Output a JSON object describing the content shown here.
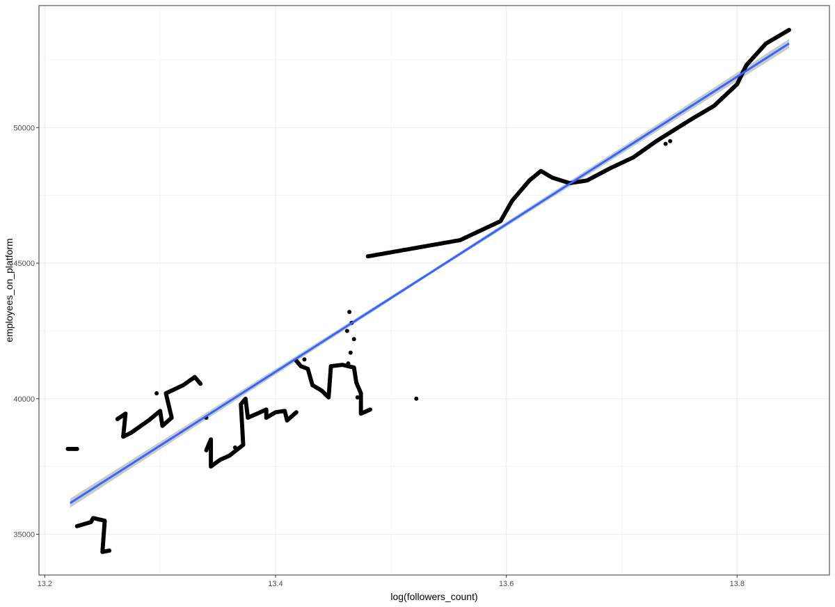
{
  "chart_data": {
    "type": "scatter",
    "title": "",
    "xlabel": "log(followers_count)",
    "ylabel": "employees_on_platform",
    "xlim": [
      13.195,
      13.88
    ],
    "ylim": [
      33500,
      54500
    ],
    "x_ticks": [
      13.2,
      13.4,
      13.6,
      13.8
    ],
    "x_tick_labels": [
      "13.2",
      "13.4",
      "13.6",
      "13.8"
    ],
    "y_ticks": [
      35000,
      40000,
      45000,
      50000
    ],
    "y_tick_labels": [
      "35000",
      "40000",
      "45000",
      "50000"
    ],
    "grid": true,
    "legend": "none",
    "point_color": "#000000",
    "fit_line": {
      "method": "linear",
      "color": "#3366FF",
      "band_color": "#BFBFBF",
      "start": [
        13.222,
        36150
      ],
      "end": [
        13.845,
        53100
      ]
    },
    "point_path": [
      [
        13.22,
        38150
      ],
      [
        13.228,
        38150
      ],
      [
        13.228,
        35300
      ],
      [
        13.24,
        35450
      ],
      [
        13.242,
        35600
      ],
      [
        13.252,
        35500
      ],
      [
        13.25,
        34350
      ],
      [
        13.256,
        34400
      ],
      [
        13.263,
        39250
      ],
      [
        13.27,
        39450
      ],
      [
        13.268,
        38600
      ],
      [
        13.275,
        38750
      ],
      [
        13.28,
        38900
      ],
      [
        13.29,
        39200
      ],
      [
        13.3,
        39550
      ],
      [
        13.302,
        39000
      ],
      [
        13.31,
        39300
      ],
      [
        13.305,
        40200
      ],
      [
        13.32,
        40500
      ],
      [
        13.33,
        40800
      ],
      [
        13.335,
        40550
      ],
      [
        13.34,
        38100
      ],
      [
        13.344,
        38500
      ],
      [
        13.344,
        37500
      ],
      [
        13.352,
        37750
      ],
      [
        13.36,
        37900
      ],
      [
        13.366,
        38100
      ],
      [
        13.372,
        38300
      ],
      [
        13.37,
        39800
      ],
      [
        13.374,
        40000
      ],
      [
        13.376,
        39300
      ],
      [
        13.384,
        39450
      ],
      [
        13.392,
        39600
      ],
      [
        13.392,
        39300
      ],
      [
        13.4,
        39500
      ],
      [
        13.408,
        39550
      ],
      [
        13.41,
        39200
      ],
      [
        13.418,
        39500
      ],
      [
        13.418,
        41400
      ],
      [
        13.422,
        41200
      ],
      [
        13.428,
        41100
      ],
      [
        13.432,
        40500
      ],
      [
        13.44,
        40300
      ],
      [
        13.446,
        40050
      ],
      [
        13.448,
        41200
      ],
      [
        13.458,
        41250
      ],
      [
        13.468,
        41150
      ],
      [
        13.47,
        40600
      ],
      [
        13.474,
        40200
      ],
      [
        13.474,
        39450
      ],
      [
        13.482,
        39600
      ],
      [
        13.48,
        45250
      ],
      [
        13.5,
        45400
      ],
      [
        13.52,
        45550
      ],
      [
        13.54,
        45700
      ],
      [
        13.56,
        45850
      ],
      [
        13.58,
        46250
      ],
      [
        13.595,
        46550
      ],
      [
        13.605,
        47300
      ],
      [
        13.62,
        48050
      ],
      [
        13.63,
        48400
      ],
      [
        13.64,
        48150
      ],
      [
        13.655,
        47950
      ],
      [
        13.67,
        48050
      ],
      [
        13.69,
        48500
      ],
      [
        13.71,
        48900
      ],
      [
        13.73,
        49500
      ],
      [
        13.76,
        50300
      ],
      [
        13.78,
        50800
      ],
      [
        13.8,
        51600
      ],
      [
        13.808,
        52300
      ],
      [
        13.825,
        53100
      ],
      [
        13.845,
        53600
      ]
    ],
    "isolated_points": [
      [
        13.34,
        39300
      ],
      [
        13.297,
        40200
      ],
      [
        13.425,
        41450
      ],
      [
        13.464,
        43200
      ],
      [
        13.466,
        42800
      ],
      [
        13.468,
        42200
      ],
      [
        13.465,
        41700
      ],
      [
        13.462,
        42500
      ],
      [
        13.463,
        41300
      ],
      [
        13.471,
        40050
      ],
      [
        13.522,
        40000
      ],
      [
        13.738,
        49400
      ],
      [
        13.742,
        49500
      ],
      [
        13.365,
        38200
      ]
    ]
  }
}
